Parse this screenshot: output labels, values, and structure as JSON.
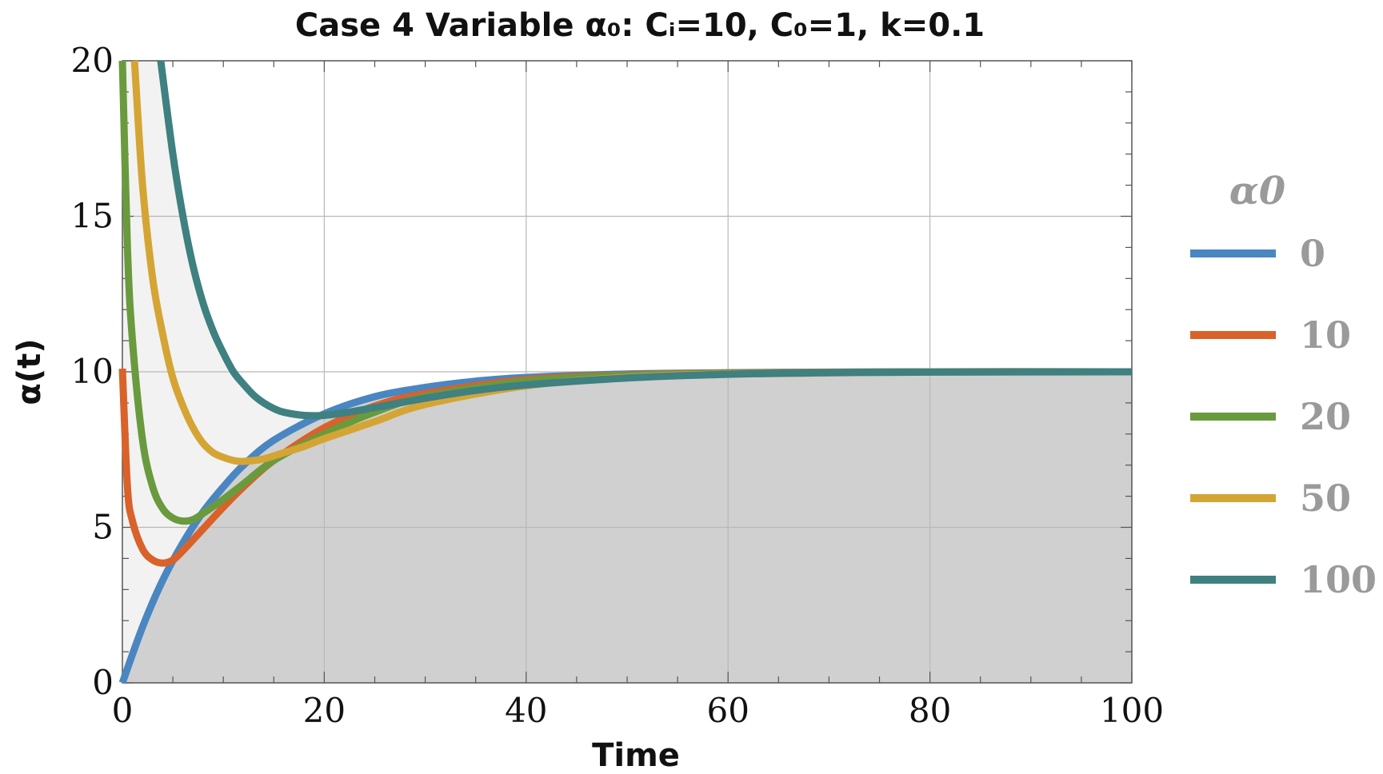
{
  "chart_data": {
    "type": "line",
    "title": "Case 4 Variable α₀: Cᵢ=10, C₀=1, k=0.1",
    "xlabel": "Time",
    "ylabel": "α(t)",
    "xlim": [
      0,
      100
    ],
    "ylim": [
      0,
      20
    ],
    "xticks": [
      "0",
      "20",
      "40",
      "60",
      "80",
      "100"
    ],
    "yticks": [
      "0",
      "5",
      "10",
      "15",
      "20"
    ],
    "grid": true,
    "legend": {
      "title": "α0",
      "placement": "right"
    },
    "series": [
      {
        "name": "0",
        "color": "#4a86c1",
        "points": [
          [
            0,
            0
          ],
          [
            2,
            1.8
          ],
          [
            4,
            3.3
          ],
          [
            6,
            4.5
          ],
          [
            8,
            5.5
          ],
          [
            10,
            6.3
          ],
          [
            12,
            7.0
          ],
          [
            15,
            7.8
          ],
          [
            20,
            8.65
          ],
          [
            25,
            9.2
          ],
          [
            30,
            9.5
          ],
          [
            35,
            9.7
          ],
          [
            40,
            9.82
          ],
          [
            50,
            9.93
          ],
          [
            60,
            9.97
          ],
          [
            70,
            9.99
          ],
          [
            80,
            10.0
          ],
          [
            100,
            10.0
          ]
        ]
      },
      {
        "name": "10",
        "color": "#d8622a",
        "points": [
          [
            0,
            10.1
          ],
          [
            0.5,
            6.3
          ],
          [
            1,
            5.2
          ],
          [
            2,
            4.3
          ],
          [
            3,
            3.95
          ],
          [
            4,
            3.85
          ],
          [
            5,
            3.95
          ],
          [
            6,
            4.25
          ],
          [
            8,
            4.95
          ],
          [
            10,
            5.65
          ],
          [
            12,
            6.3
          ],
          [
            15,
            7.15
          ],
          [
            20,
            8.2
          ],
          [
            25,
            8.9
          ],
          [
            30,
            9.3
          ],
          [
            40,
            9.75
          ],
          [
            50,
            9.9
          ],
          [
            60,
            9.96
          ],
          [
            80,
            10.0
          ],
          [
            100,
            10.0
          ]
        ]
      },
      {
        "name": "20",
        "color": "#6a9a3e",
        "points": [
          [
            0,
            20.0
          ],
          [
            0.5,
            14.0
          ],
          [
            1,
            11.0
          ],
          [
            2,
            7.8
          ],
          [
            3,
            6.3
          ],
          [
            4,
            5.6
          ],
          [
            5,
            5.3
          ],
          [
            6,
            5.2
          ],
          [
            7,
            5.25
          ],
          [
            8,
            5.45
          ],
          [
            10,
            5.9
          ],
          [
            12,
            6.4
          ],
          [
            15,
            7.15
          ],
          [
            20,
            8.0
          ],
          [
            25,
            8.7
          ],
          [
            30,
            9.2
          ],
          [
            40,
            9.7
          ],
          [
            50,
            9.88
          ],
          [
            60,
            9.95
          ],
          [
            80,
            10.0
          ],
          [
            100,
            10.0
          ]
        ]
      },
      {
        "name": "50",
        "color": "#d4a535",
        "points": [
          [
            1.2,
            20.0
          ],
          [
            2,
            16.0
          ],
          [
            3,
            13.0
          ],
          [
            4,
            11.2
          ],
          [
            5,
            9.8
          ],
          [
            6,
            8.9
          ],
          [
            7,
            8.2
          ],
          [
            8,
            7.7
          ],
          [
            9,
            7.4
          ],
          [
            10,
            7.25
          ],
          [
            11,
            7.15
          ],
          [
            12,
            7.12
          ],
          [
            14,
            7.2
          ],
          [
            16,
            7.4
          ],
          [
            18,
            7.6
          ],
          [
            20,
            7.85
          ],
          [
            25,
            8.4
          ],
          [
            30,
            8.95
          ],
          [
            40,
            9.55
          ],
          [
            50,
            9.82
          ],
          [
            60,
            9.93
          ],
          [
            80,
            9.99
          ],
          [
            100,
            10.0
          ]
        ]
      },
      {
        "name": "100",
        "color": "#3f8080",
        "points": [
          [
            3.8,
            20.0
          ],
          [
            5,
            17.0
          ],
          [
            6,
            15.0
          ],
          [
            7,
            13.4
          ],
          [
            8,
            12.2
          ],
          [
            9,
            11.3
          ],
          [
            10,
            10.6
          ],
          [
            11,
            10.0
          ],
          [
            12,
            9.6
          ],
          [
            13,
            9.25
          ],
          [
            14,
            9.0
          ],
          [
            15,
            8.82
          ],
          [
            16,
            8.7
          ],
          [
            18,
            8.6
          ],
          [
            20,
            8.6
          ],
          [
            22,
            8.68
          ],
          [
            25,
            8.85
          ],
          [
            30,
            9.15
          ],
          [
            35,
            9.4
          ],
          [
            40,
            9.58
          ],
          [
            50,
            9.8
          ],
          [
            60,
            9.92
          ],
          [
            70,
            9.97
          ],
          [
            80,
            9.99
          ],
          [
            100,
            10.0
          ]
        ]
      }
    ]
  }
}
